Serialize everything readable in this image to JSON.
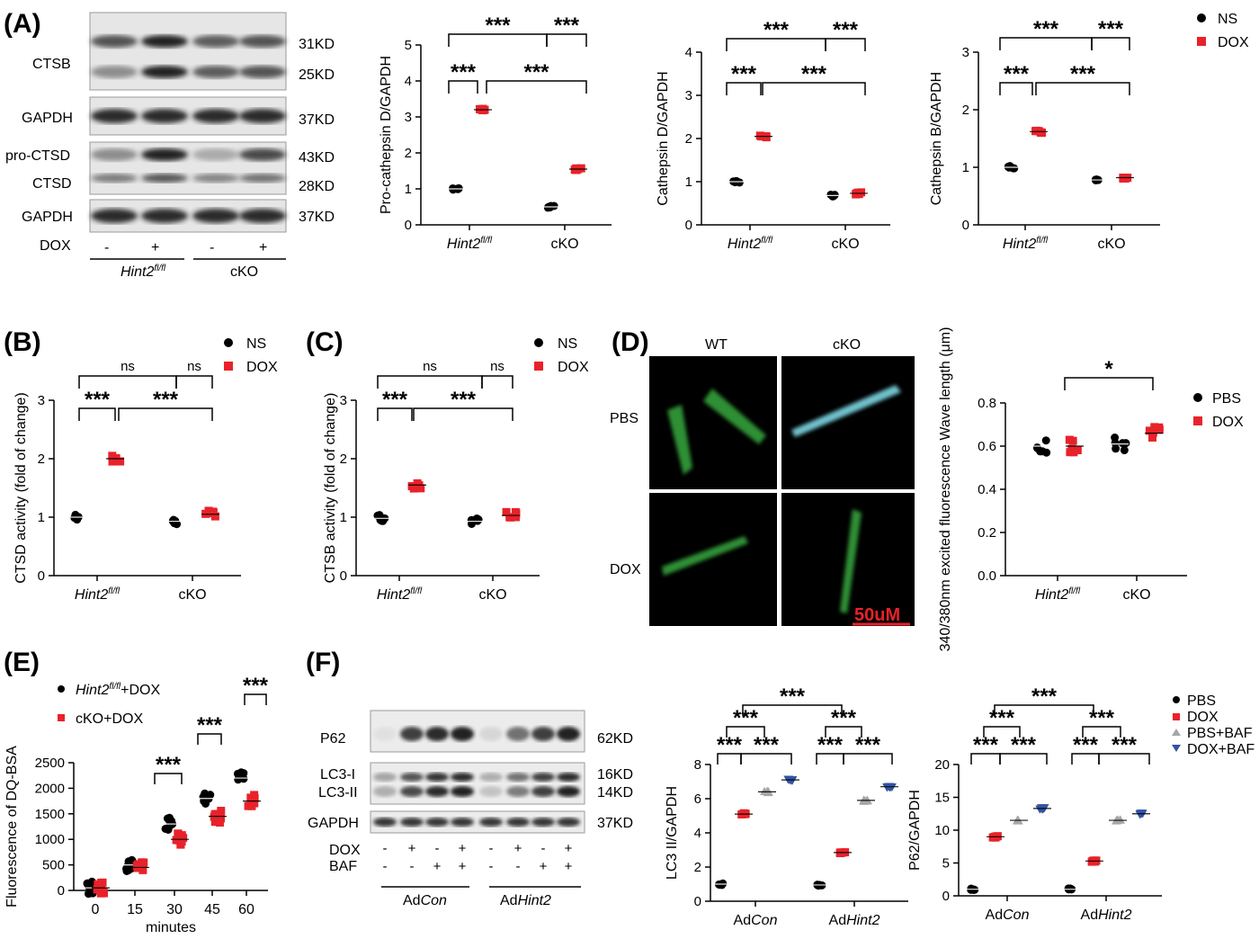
{
  "figure": {
    "colors": {
      "ns": "#000000",
      "dox": "#e8222a",
      "baf": "#a6a6a6",
      "dox_baf": "#3253a5",
      "blot_bg": "#e8e8e8",
      "band": "#222222",
      "micro_bg": "#000000",
      "cell_green": "#3fae3f",
      "cell_cyan": "#6fc7d3",
      "scale_red": "#e8222a"
    },
    "panel_labels": {
      "A": "(A)",
      "B": "(B)",
      "C": "(C)",
      "D": "(D)",
      "E": "(E)",
      "F": "(F)"
    },
    "sig": {
      "three": "***",
      "one": "*",
      "ns": "ns"
    },
    "legend_ns_dox": {
      "ns": "NS",
      "dox": "DOX"
    },
    "legend_pbs_dox": {
      "pbs": "PBS",
      "dox": "DOX"
    },
    "legend_E": {
      "hint_label": "Hint2",
      "hint_sup": "fl/fl",
      "hint_suffix": "+DOX",
      "cko": "cKO+DOX"
    },
    "legend_F": {
      "pbs": "PBS",
      "dox": "DOX",
      "pbs_baf": "PBS+BAF",
      "dox_baf": "DOX+BAF"
    },
    "groups": {
      "hint_label": "Hint2",
      "hint_sup": "fl/fl",
      "cko": "cKO",
      "adcon_prefix": "Ad",
      "adcon_it": "Con",
      "adhint_prefix": "Ad",
      "adhint_it": "Hint2"
    },
    "blotA": {
      "ctsb": "CTSB",
      "gapdh": "GAPDH",
      "pro_ctsd": "pro-CTSD",
      "ctsd": "CTSD",
      "dox": "DOX",
      "kd31": "31KD",
      "kd25": "25KD",
      "kd37": "37KD",
      "kd43": "43KD",
      "kd28": "28KD",
      "kd37b": "37KD",
      "signs": [
        "-",
        "+",
        "-",
        "+"
      ]
    },
    "blotF": {
      "p62": "P62",
      "lc3i": "LC3-I",
      "lc3ii": "LC3-II",
      "gapdh": "GAPDH",
      "dox": "DOX",
      "baf": "BAF",
      "kd62": "62KD",
      "kd16": "16KD",
      "kd14": "14KD",
      "kd37": "37KD",
      "dox_signs": [
        "-",
        "+",
        "-",
        "+",
        "-",
        "+",
        "-",
        "+"
      ],
      "baf_signs": [
        "-",
        "-",
        "+",
        "+",
        "-",
        "-",
        "+",
        "+"
      ]
    },
    "micro": {
      "wt": "WT",
      "cko": "cKO",
      "pbs": "PBS",
      "dox": "DOX",
      "scale": "50uM"
    }
  },
  "chart_data": [
    {
      "id": "A1",
      "type": "scatter",
      "title": "",
      "xlabel": "",
      "ylabel": "Pro-cathepsin D/GAPDH",
      "ylim": [
        0,
        5
      ],
      "yticks": [
        0,
        1,
        2,
        3,
        4,
        5
      ],
      "categories": [
        "Hint2 fl/fl",
        "cKO"
      ],
      "series": [
        {
          "name": "NS",
          "values": [
            1.0,
            0.5
          ]
        },
        {
          "name": "DOX",
          "values": [
            3.2,
            1.55
          ]
        }
      ]
    },
    {
      "id": "A2",
      "type": "scatter",
      "title": "",
      "xlabel": "",
      "ylabel": "Cathepsin D/GAPDH",
      "ylim": [
        0,
        4
      ],
      "yticks": [
        0,
        1,
        2,
        3,
        4
      ],
      "categories": [
        "Hint2 fl/fl",
        "cKO"
      ],
      "series": [
        {
          "name": "NS",
          "values": [
            1.0,
            0.68
          ]
        },
        {
          "name": "DOX",
          "values": [
            2.05,
            0.73
          ]
        }
      ]
    },
    {
      "id": "A3",
      "type": "scatter",
      "title": "",
      "xlabel": "",
      "ylabel": "Cathepsin B/GAPDH",
      "ylim": [
        0,
        3
      ],
      "yticks": [
        0,
        1,
        2,
        3
      ],
      "categories": [
        "Hint2 fl/fl",
        "cKO"
      ],
      "series": [
        {
          "name": "NS",
          "values": [
            1.0,
            0.78
          ]
        },
        {
          "name": "DOX",
          "values": [
            1.62,
            0.82
          ]
        }
      ]
    },
    {
      "id": "B",
      "type": "scatter",
      "title": "",
      "xlabel": "",
      "ylabel": "CTSD activity (fold of change)",
      "ylim": [
        0,
        3
      ],
      "yticks": [
        0,
        1,
        2,
        3
      ],
      "categories": [
        "Hint2 fl/fl",
        "cKO"
      ],
      "series": [
        {
          "name": "NS",
          "values": [
            1.0,
            0.93
          ]
        },
        {
          "name": "DOX",
          "values": [
            2.0,
            1.05
          ]
        }
      ]
    },
    {
      "id": "C",
      "type": "scatter",
      "title": "",
      "xlabel": "",
      "ylabel": "CTSB activity (fold of change)",
      "ylim": [
        0,
        3
      ],
      "yticks": [
        0,
        1,
        2,
        3
      ],
      "categories": [
        "Hint2 fl/fl",
        "cKO"
      ],
      "series": [
        {
          "name": "NS",
          "values": [
            0.98,
            0.93
          ]
        },
        {
          "name": "DOX",
          "values": [
            1.55,
            1.03
          ]
        }
      ]
    },
    {
      "id": "D",
      "type": "scatter",
      "title": "",
      "xlabel": "",
      "ylabel": "340/380nm excited fluorescence Wave length (μm)",
      "ylim": [
        0,
        0.8
      ],
      "yticks": [
        0.0,
        0.2,
        0.4,
        0.6,
        0.8
      ],
      "categories": [
        "Hint2 fl/fl",
        "cKO"
      ],
      "series": [
        {
          "name": "PBS",
          "values": [
            0.6,
            0.61
          ]
        },
        {
          "name": "DOX",
          "values": [
            0.6,
            0.66
          ]
        }
      ]
    },
    {
      "id": "E",
      "type": "scatter",
      "title": "",
      "xlabel": "minutes",
      "ylabel": "Fluorescence of DQ-BSA",
      "ylim": [
        0,
        2500
      ],
      "yticks": [
        0,
        500,
        1000,
        1500,
        2000,
        2500
      ],
      "categories": [
        "0",
        "15",
        "30",
        "45",
        "60"
      ],
      "series": [
        {
          "name": "Hint2 fl/fl+DOX",
          "values": [
            50,
            500,
            1300,
            1800,
            2200
          ]
        },
        {
          "name": "cKO+DOX",
          "values": [
            50,
            450,
            1000,
            1450,
            1750
          ]
        }
      ]
    },
    {
      "id": "F1",
      "type": "scatter",
      "title": "",
      "xlabel": "",
      "ylabel": "LC3 II/GAPDH",
      "ylim": [
        0,
        8
      ],
      "yticks": [
        0,
        2,
        4,
        6,
        8
      ],
      "categories": [
        "AdCon",
        "AdHint2"
      ],
      "series": [
        {
          "name": "PBS",
          "values": [
            1.0,
            0.95
          ]
        },
        {
          "name": "DOX",
          "values": [
            5.1,
            2.85
          ]
        },
        {
          "name": "PBS+BAF",
          "values": [
            6.4,
            5.9
          ]
        },
        {
          "name": "DOX+BAF",
          "values": [
            7.1,
            6.7
          ]
        }
      ]
    },
    {
      "id": "F2",
      "type": "scatter",
      "title": "",
      "xlabel": "",
      "ylabel": "P62/GAPDH",
      "ylim": [
        0,
        20
      ],
      "yticks": [
        0,
        5,
        10,
        15,
        20
      ],
      "categories": [
        "AdCon",
        "AdHint2"
      ],
      "series": [
        {
          "name": "PBS",
          "values": [
            1.0,
            1.0
          ]
        },
        {
          "name": "DOX",
          "values": [
            9.0,
            5.3
          ]
        },
        {
          "name": "PBS+BAF",
          "values": [
            11.5,
            11.5
          ]
        },
        {
          "name": "DOX+BAF",
          "values": [
            13.3,
            12.5
          ]
        }
      ]
    }
  ]
}
